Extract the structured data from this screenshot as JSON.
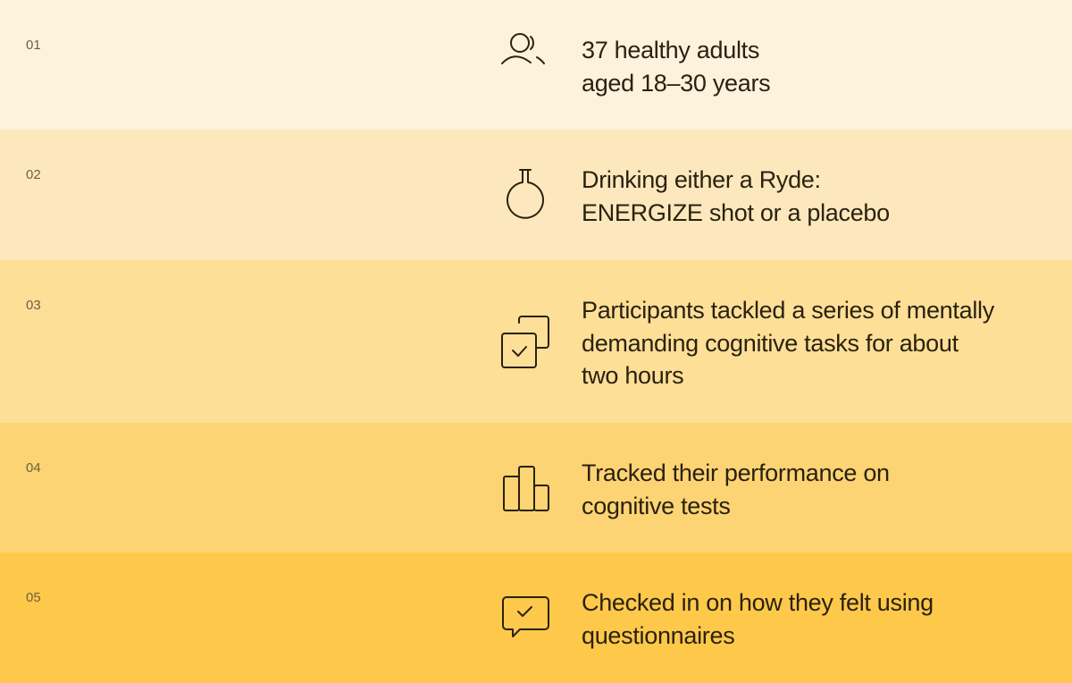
{
  "steps": [
    {
      "number": "01",
      "text": "37 healthy adults\naged 18–30 years",
      "icon": "people-icon",
      "color": "#fdf2dc"
    },
    {
      "number": "02",
      "text": "Drinking either a Ryde:\nENERGIZE shot or a placebo",
      "icon": "flask-icon",
      "color": "#fde8bd"
    },
    {
      "number": "03",
      "text": "Participants tackled a series of mentally\ndemanding cognitive tasks for about\ntwo hours",
      "icon": "stacked-checkbox-icon",
      "color": "#fddf97"
    },
    {
      "number": "04",
      "text": "Tracked their performance on\ncognitive tests",
      "icon": "bar-chart-icon",
      "color": "#fdd474"
    },
    {
      "number": "05",
      "text": "Checked in on how they felt using\nquestionnaires",
      "icon": "chat-check-icon",
      "color": "#fec94b"
    }
  ]
}
